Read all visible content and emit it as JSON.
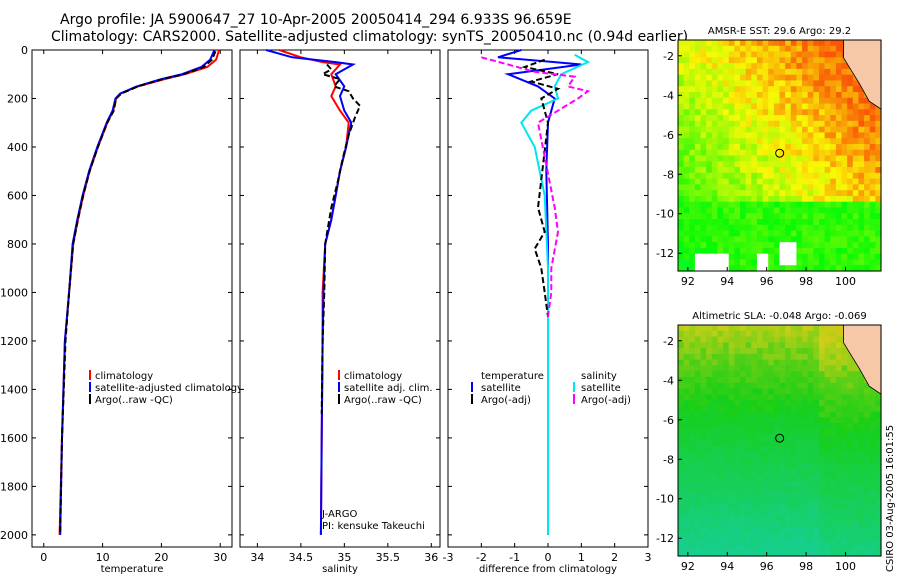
{
  "header": {
    "line1": "Argo profile: JA 5900647_27 10-Apr-2005 20050414_294 6.933S 96.659E",
    "line2": "Climatology: CARS2000. Satellite-adjusted climatology: synTS_20050410.nc (0.94d earlier)"
  },
  "side_label": "CSIRO 03-Aug-2005 16:01:55",
  "colors": {
    "climatology": "#ff0000",
    "satellite": "#0000ff",
    "argo": "#000000",
    "magenta": "#ff00ff",
    "cyan": "#00e5ee"
  },
  "chart_data": [
    {
      "id": "temperature",
      "type": "line",
      "xlabel": "temperature",
      "ylabel": "",
      "xlim": [
        -2,
        32
      ],
      "ylim": [
        2050,
        0
      ],
      "xticks": [
        0,
        10,
        20,
        30
      ],
      "yticks": [
        0,
        200,
        400,
        600,
        800,
        1000,
        1200,
        1400,
        1600,
        1800,
        2000
      ],
      "legend": [
        "climatology",
        "satellite-adjusted climatology",
        "Argo(..raw -QC)"
      ],
      "series": [
        {
          "name": "climatology",
          "color": "red",
          "x": [
            29.8,
            29.3,
            27.8,
            24.0,
            20.5,
            16.0,
            13.0,
            12.3,
            11.8,
            10.8,
            9.2,
            7.8,
            6.7,
            5.8,
            5.0,
            4.3,
            3.6,
            3.1,
            2.7
          ],
          "y": [
            0,
            40,
            70,
            100,
            120,
            150,
            180,
            200,
            250,
            300,
            400,
            500,
            600,
            700,
            800,
            1000,
            1200,
            1600,
            2000
          ]
        },
        {
          "name": "satellite-adjusted climatology",
          "color": "blue",
          "x": [
            29.0,
            28.3,
            26.8,
            23.5,
            20.0,
            15.8,
            13.0,
            12.2,
            11.7,
            10.7,
            9.1,
            7.7,
            6.6,
            5.7,
            4.9,
            4.3,
            3.6,
            3.1,
            2.8
          ],
          "y": [
            0,
            40,
            70,
            100,
            120,
            150,
            180,
            200,
            250,
            300,
            400,
            500,
            600,
            700,
            800,
            1000,
            1200,
            1600,
            2000
          ]
        },
        {
          "name": "Argo(..raw -QC)",
          "color": "black",
          "x": [
            29.2,
            28.6,
            27.2,
            23.8,
            20.2,
            16.0,
            13.2,
            12.3,
            11.9,
            10.8,
            9.2,
            7.8,
            6.7,
            5.8,
            5.0,
            4.3,
            3.7,
            3.1,
            2.8
          ],
          "y": [
            5,
            40,
            70,
            100,
            120,
            150,
            180,
            200,
            250,
            300,
            400,
            500,
            600,
            700,
            800,
            1000,
            1200,
            1600,
            1990
          ]
        }
      ]
    },
    {
      "id": "salinity",
      "type": "line",
      "xlabel": "salinity",
      "ylabel": "",
      "xlim": [
        33.8,
        36.1
      ],
      "ylim": [
        2050,
        0
      ],
      "xticks": [
        34,
        34.5,
        35,
        35.5,
        36
      ],
      "yticks": [],
      "legend": [
        "climatology",
        "satellite adj. clim.",
        "Argo(..raw -QC)"
      ],
      "annotations": [
        "J-ARGO",
        "PI: kensuke Takeuchi"
      ],
      "series": [
        {
          "name": "climatology",
          "color": "red",
          "x": [
            34.25,
            34.5,
            34.75,
            34.95,
            34.85,
            34.9,
            34.85,
            34.95,
            35.05,
            35.02,
            34.95,
            34.9,
            34.85,
            34.78,
            34.75,
            34.75,
            34.74,
            34.73
          ],
          "y": [
            0,
            30,
            50,
            60,
            100,
            150,
            190,
            250,
            300,
            400,
            500,
            600,
            700,
            800,
            1000,
            1200,
            1600,
            2000
          ]
        },
        {
          "name": "satellite adj. clim.",
          "color": "blue",
          "x": [
            34.1,
            34.4,
            34.9,
            35.1,
            34.9,
            35.0,
            34.95,
            35.0,
            35.08,
            35.02,
            34.95,
            34.9,
            34.85,
            34.78,
            34.76,
            34.75,
            34.74,
            34.73
          ],
          "y": [
            0,
            30,
            50,
            60,
            100,
            150,
            190,
            250,
            300,
            400,
            500,
            600,
            700,
            800,
            1000,
            1200,
            1600,
            2000
          ]
        },
        {
          "name": "Argo(..raw -QC)",
          "color": "black",
          "x": [
            34.8,
            34.85,
            34.75,
            34.95,
            34.88,
            35.05,
            35.1,
            35.18,
            35.12,
            35.05,
            34.98,
            34.92,
            34.85,
            34.78,
            34.77,
            34.75,
            34.74
          ],
          "y": [
            60,
            80,
            100,
            120,
            150,
            170,
            200,
            230,
            280,
            350,
            450,
            550,
            650,
            800,
            1000,
            1200,
            1500
          ]
        }
      ]
    },
    {
      "id": "difference",
      "type": "line",
      "xlabel": "difference from climatology",
      "ylabel": "",
      "xlim": [
        -3,
        3
      ],
      "ylim": [
        2050,
        0
      ],
      "xticks": [
        -3,
        -2,
        -1,
        0,
        1,
        2,
        3
      ],
      "yticks": [],
      "legend_left": [
        "temperature",
        "satellite",
        "Argo(-adj)"
      ],
      "legend_right": [
        "salinity",
        "satellite",
        "Argo(-adj)"
      ],
      "series": [
        {
          "name": "temperature satellite",
          "color": "blue",
          "x": [
            -0.8,
            -1.5,
            0.2,
            1.0,
            -1.2,
            -0.3,
            0.2,
            0.0,
            -0.05,
            0.0,
            0.0,
            0.0,
            0.0
          ],
          "y": [
            0,
            30,
            50,
            60,
            100,
            150,
            200,
            300,
            500,
            800,
            1200,
            1600,
            2000
          ]
        },
        {
          "name": "salinity satellite",
          "color": "cyan",
          "x": [
            0.8,
            1.2,
            0.4,
            0.2,
            0.3,
            -0.5,
            -0.8,
            -0.4,
            -0.1,
            0.0,
            0.0,
            0.0
          ],
          "y": [
            20,
            50,
            100,
            150,
            200,
            250,
            300,
            400,
            600,
            900,
            1400,
            2000
          ]
        },
        {
          "name": "temperature Argo(-adj)",
          "color": "black",
          "x": [
            -0.1,
            -0.7,
            0.3,
            -0.5,
            0.3,
            -0.2,
            0.0,
            -0.3,
            -0.1,
            -0.4,
            -0.2,
            -0.1,
            0.0
          ],
          "y": [
            40,
            70,
            100,
            130,
            160,
            200,
            300,
            650,
            750,
            820,
            900,
            1000,
            1100
          ]
        },
        {
          "name": "salinity Argo(-adj)",
          "color": "magenta",
          "x": [
            -2.0,
            -1.2,
            -0.4,
            0.8,
            0.6,
            1.2,
            0.9,
            -0.3,
            0.2,
            0.3,
            0.1,
            0.1,
            0.0
          ],
          "y": [
            30,
            60,
            90,
            110,
            150,
            170,
            200,
            300,
            650,
            750,
            900,
            1000,
            1100
          ]
        }
      ]
    },
    {
      "id": "sst-map",
      "type": "heatmap",
      "title": "AMSR-E SST: 29.6 Argo: 29.2",
      "xlim": [
        91.5,
        101.8
      ],
      "ylim": [
        -12.9,
        -1.2
      ],
      "xticks": [
        92,
        94,
        96,
        98,
        100
      ],
      "yticks": [
        -2,
        -4,
        -6,
        -8,
        -10,
        -12
      ],
      "marker": {
        "lon": 96.659,
        "lat": -6.933
      }
    },
    {
      "id": "sla-map",
      "type": "heatmap",
      "title": "Altimetric SLA: -0.048 Argo: -0.069",
      "xlim": [
        91.5,
        101.8
      ],
      "ylim": [
        -12.9,
        -1.2
      ],
      "xticks": [
        92,
        94,
        96,
        98,
        100
      ],
      "yticks": [
        -2,
        -4,
        -6,
        -8,
        -10,
        -12
      ],
      "marker": {
        "lon": 96.659,
        "lat": -6.933
      }
    }
  ]
}
